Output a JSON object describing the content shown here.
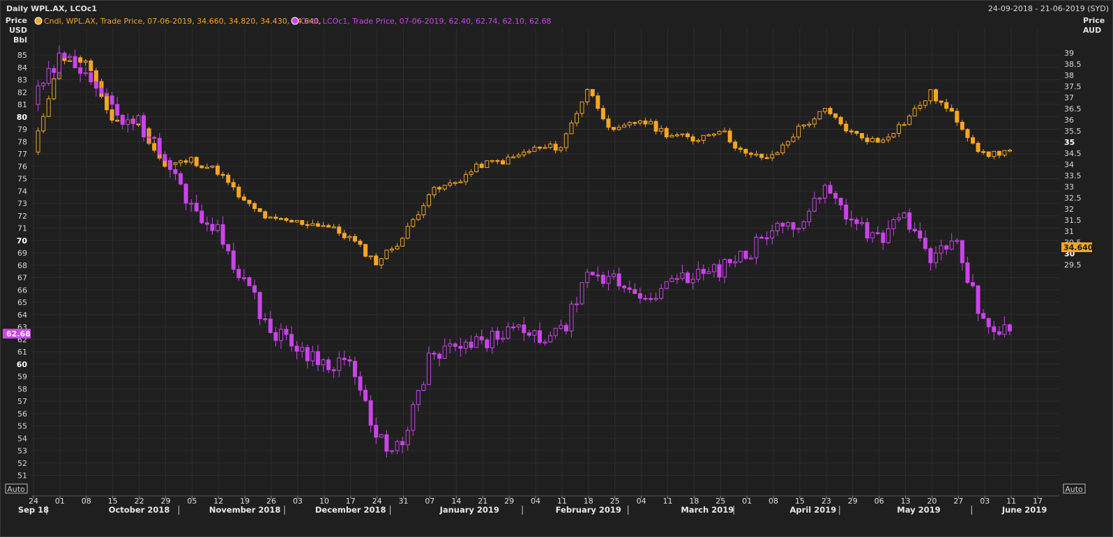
{
  "header": {
    "title": "Daily WPL.AX, LCOc1",
    "date_range": "24-09-2018 - 21-06-2019 (SYD)",
    "left_axis_title": [
      "Price",
      "USD",
      "Bbl"
    ],
    "right_axis_title": [
      "Price",
      "AUD"
    ],
    "legend_wpl": "Cndl, WPL.AX, Trade Price, 07-06-2019, 34.660, 34.820, 34.430, 34.640,",
    "legend_lco": "Cndl, LCOc1, Trade Price, 07-06-2019, 62.40, 62.74, 62.10, 62.68",
    "auto_left": "Auto",
    "auto_right": "Auto",
    "last_lco_label": "62.68",
    "last_wpl_label": "34.640"
  },
  "colors": {
    "background": "#1f1f1f",
    "grid": "#2e2e2e",
    "wpl": "#f5a623",
    "lco": "#c845e8",
    "axis_text": "#d8d8d8"
  },
  "chart_data": {
    "type": "candlestick",
    "series": [
      {
        "name": "WPL.AX",
        "axis": "right",
        "unit": "AUD"
      },
      {
        "name": "LCOc1",
        "axis": "left",
        "unit": "USD/Bbl"
      }
    ],
    "left_axis": {
      "min": 51,
      "max": 85,
      "ticks": [
        51,
        52,
        53,
        54,
        55,
        56,
        57,
        58,
        59,
        60,
        61,
        62,
        63,
        64,
        65,
        66,
        67,
        68,
        69,
        70,
        71,
        72,
        73,
        74,
        75,
        76,
        77,
        78,
        79,
        80,
        81,
        82,
        83,
        84,
        85
      ],
      "bold": [
        60,
        70,
        80
      ]
    },
    "right_axis": {
      "ticks": [
        29.5,
        30,
        30.5,
        31,
        31.5,
        32,
        32.5,
        33,
        33.5,
        34,
        34.5,
        35,
        35.5,
        36,
        36.5,
        37,
        37.5,
        38,
        38.5,
        39
      ],
      "bold": [
        30,
        35
      ]
    },
    "x_day_labels": [
      "24",
      "01",
      "08",
      "15",
      "22",
      "29",
      "05",
      "12",
      "19",
      "26",
      "03",
      "10",
      "17",
      "24",
      "31",
      "07",
      "14",
      "21",
      "29",
      "04",
      "11",
      "18",
      "25",
      "04",
      "11",
      "18",
      "25",
      "01",
      "08",
      "15",
      "23",
      "29",
      "06",
      "13",
      "20",
      "27",
      "03",
      "11",
      "17"
    ],
    "x_month_labels": [
      "Sep 18",
      "October 2018",
      "November 2018",
      "December 2018",
      "January 2019",
      "February 2019",
      "March 2019",
      "April 2019",
      "May 2019",
      "June 2019"
    ],
    "lco_close_weekly": [
      81.2,
      84.6,
      84.1,
      80.4,
      79.6,
      76.5,
      72.9,
      70.7,
      66.8,
      62.7,
      61.5,
      60.1,
      60.3,
      53.8,
      53.2,
      60.4,
      61.3,
      61.6,
      62.8,
      62.1,
      62.5,
      66.8,
      66.9,
      65.5,
      66.2,
      67.2,
      67.6,
      68.7,
      70.9,
      71.4,
      74.2,
      71.9,
      70.2,
      71.8,
      68.7,
      69.4,
      63.2,
      62.68
    ],
    "wpl_close_weekly": [
      34.5,
      38.8,
      38.6,
      36.0,
      35.9,
      33.9,
      34.2,
      33.7,
      32.3,
      31.5,
      31.4,
      31.3,
      30.7,
      29.6,
      30.7,
      32.7,
      33.2,
      34.0,
      34.2,
      34.7,
      34.8,
      37.4,
      35.4,
      36.0,
      35.4,
      35.1,
      35.6,
      34.4,
      34.3,
      35.6,
      36.4,
      35.4,
      35.0,
      35.9,
      37.2,
      36.0,
      34.4,
      34.64
    ],
    "last": {
      "date": "07-06-2019",
      "wpl": {
        "open": 34.66,
        "high": 34.82,
        "low": 34.43,
        "close": 34.64
      },
      "lco": {
        "open": 62.4,
        "high": 62.74,
        "low": 62.1,
        "close": 62.68
      }
    }
  }
}
